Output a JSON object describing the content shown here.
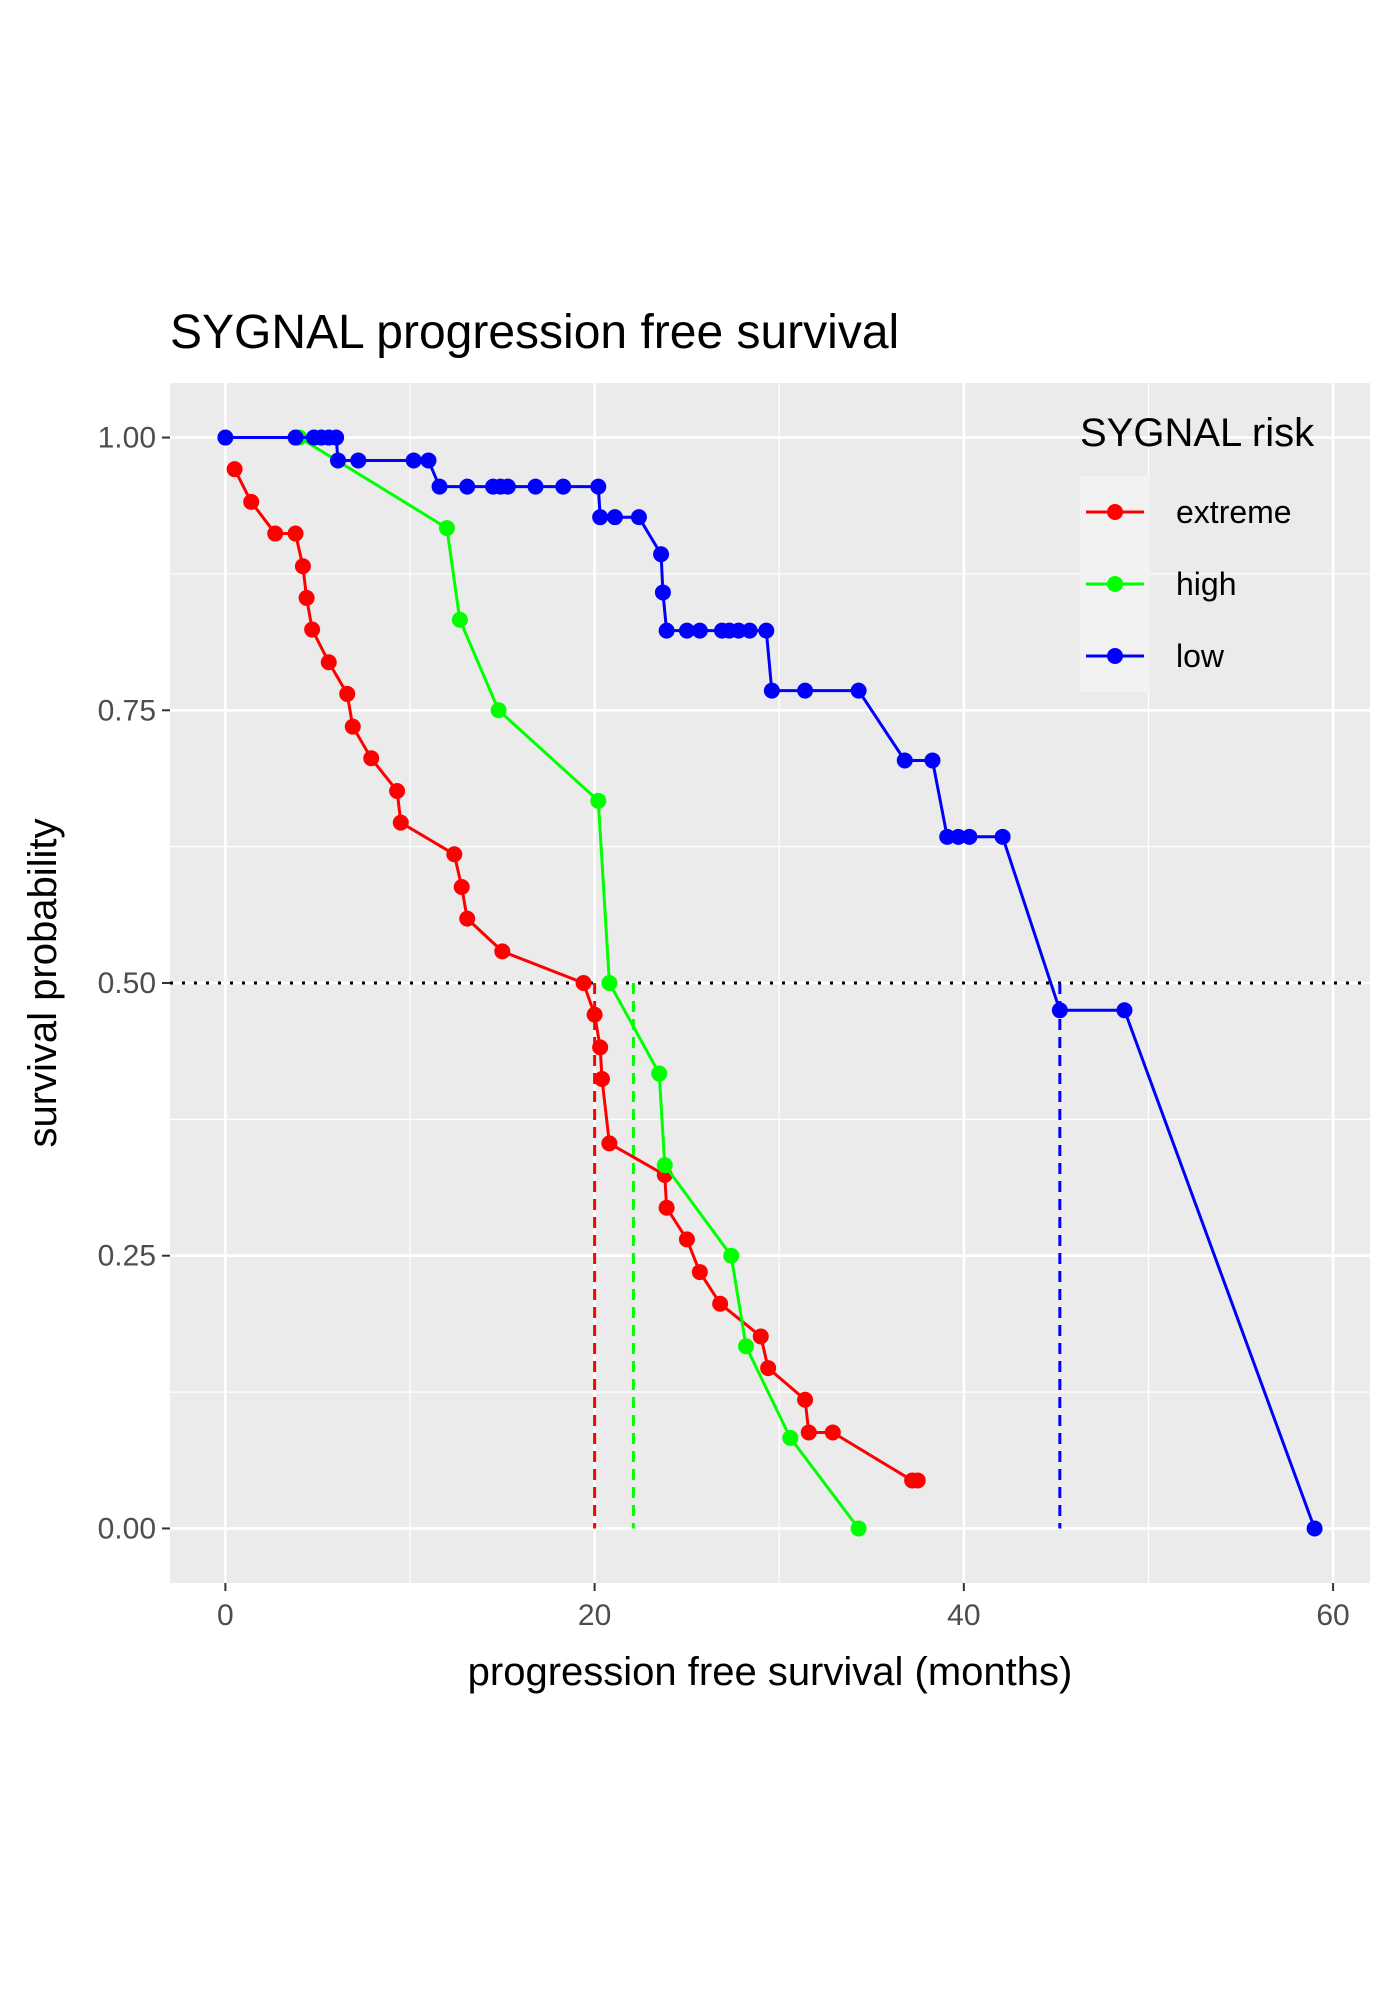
{
  "chart_data": {
    "type": "line",
    "title": "SYGNAL progression free survival",
    "xlabel": "progression free survival (months)",
    "ylabel": "survival probability",
    "xlim": [
      -3,
      62
    ],
    "ylim": [
      -0.05,
      1.05
    ],
    "x_ticks": [
      0,
      20,
      40,
      60
    ],
    "x_tick_labels": [
      "0",
      "20",
      "40",
      "60"
    ],
    "y_ticks": [
      0,
      0.25,
      0.5,
      0.75,
      1
    ],
    "y_tick_labels": [
      "0.00",
      "0.25",
      "0.50",
      "0.75",
      "1.00"
    ],
    "grid": true,
    "reference_line_y": 0.5,
    "legend": {
      "title": "SYGNAL risk",
      "position": "top-right"
    },
    "series": [
      {
        "name": "extreme",
        "color": "#ff0000",
        "median": 20,
        "points": [
          [
            0.5,
            0.971
          ],
          [
            1.4,
            0.941
          ],
          [
            2.7,
            0.912
          ],
          [
            3.8,
            0.912
          ],
          [
            4.2,
            0.882
          ],
          [
            4.4,
            0.853
          ],
          [
            4.7,
            0.824
          ],
          [
            5.6,
            0.794
          ],
          [
            6.6,
            0.765
          ],
          [
            6.9,
            0.735
          ],
          [
            7.9,
            0.706
          ],
          [
            9.3,
            0.676
          ],
          [
            9.5,
            0.647
          ],
          [
            12.4,
            0.618
          ],
          [
            12.8,
            0.588
          ],
          [
            13.1,
            0.559
          ],
          [
            15.0,
            0.529
          ],
          [
            19.4,
            0.5
          ],
          [
            20.0,
            0.471
          ],
          [
            20.3,
            0.441
          ],
          [
            20.4,
            0.412
          ],
          [
            20.8,
            0.353
          ],
          [
            23.8,
            0.324
          ],
          [
            23.9,
            0.294
          ],
          [
            25.0,
            0.265
          ],
          [
            25.7,
            0.235
          ],
          [
            26.8,
            0.206
          ],
          [
            29.0,
            0.176
          ],
          [
            29.4,
            0.147
          ],
          [
            31.4,
            0.118
          ],
          [
            31.6,
            0.088
          ],
          [
            32.9,
            0.088
          ],
          [
            37.2,
            0.044
          ],
          [
            37.5,
            0.044
          ]
        ]
      },
      {
        "name": "high",
        "color": "#00ff00",
        "median": 22.1,
        "points": [
          [
            4.0,
            1.0
          ],
          [
            12.0,
            0.917
          ],
          [
            12.7,
            0.833
          ],
          [
            14.8,
            0.75
          ],
          [
            20.2,
            0.667
          ],
          [
            20.8,
            0.5
          ],
          [
            23.5,
            0.417
          ],
          [
            23.8,
            0.333
          ],
          [
            27.4,
            0.25
          ],
          [
            28.2,
            0.167
          ],
          [
            30.6,
            0.083
          ],
          [
            34.3,
            0.0
          ]
        ]
      },
      {
        "name": "low",
        "color": "#0000ff",
        "median": 45.2,
        "points": [
          [
            0.0,
            1.0
          ],
          [
            3.8,
            1.0
          ],
          [
            4.8,
            1.0
          ],
          [
            5.2,
            1.0
          ],
          [
            5.6,
            1.0
          ],
          [
            6.0,
            1.0
          ],
          [
            6.1,
            0.979
          ],
          [
            7.2,
            0.979
          ],
          [
            10.2,
            0.979
          ],
          [
            11.0,
            0.979
          ],
          [
            11.6,
            0.955
          ],
          [
            13.1,
            0.955
          ],
          [
            14.5,
            0.955
          ],
          [
            14.9,
            0.955
          ],
          [
            15.3,
            0.955
          ],
          [
            16.8,
            0.955
          ],
          [
            18.3,
            0.955
          ],
          [
            20.2,
            0.955
          ],
          [
            20.3,
            0.927
          ],
          [
            21.1,
            0.927
          ],
          [
            22.4,
            0.927
          ],
          [
            23.6,
            0.893
          ],
          [
            23.7,
            0.858
          ],
          [
            23.9,
            0.823
          ],
          [
            25.0,
            0.823
          ],
          [
            25.7,
            0.823
          ],
          [
            26.9,
            0.823
          ],
          [
            27.3,
            0.823
          ],
          [
            27.8,
            0.823
          ],
          [
            28.4,
            0.823
          ],
          [
            29.3,
            0.823
          ],
          [
            29.6,
            0.768
          ],
          [
            31.4,
            0.768
          ],
          [
            34.3,
            0.768
          ],
          [
            36.8,
            0.704
          ],
          [
            38.3,
            0.704
          ],
          [
            39.1,
            0.634
          ],
          [
            39.7,
            0.634
          ],
          [
            40.3,
            0.634
          ],
          [
            42.1,
            0.634
          ],
          [
            45.2,
            0.475
          ],
          [
            48.7,
            0.475
          ],
          [
            59.0,
            0.0
          ]
        ]
      }
    ]
  }
}
